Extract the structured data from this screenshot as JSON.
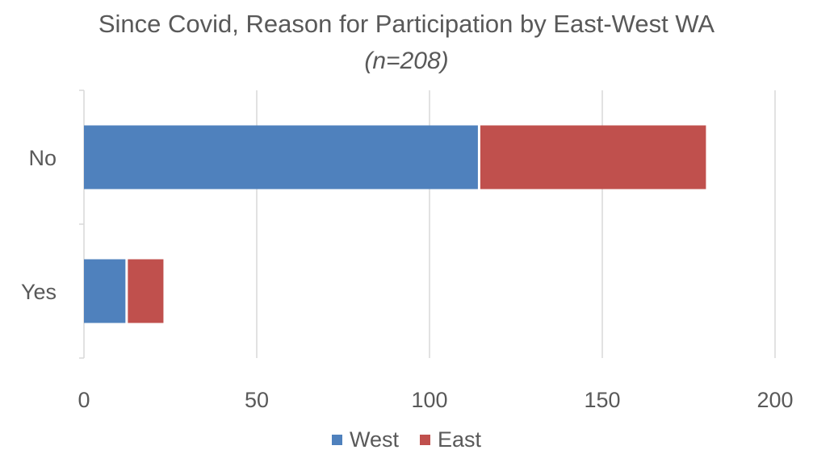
{
  "chart_data": {
    "type": "bar",
    "orientation": "horizontal",
    "stacked": true,
    "title": "Since Covid, Reason for Participation by East-West WA",
    "subtitle": "(n=208)",
    "categories": [
      "No",
      "Yes"
    ],
    "series": [
      {
        "name": "West",
        "color": "#4f81bd",
        "values": [
          114,
          12
        ]
      },
      {
        "name": "East",
        "color": "#c0504d",
        "values": [
          66,
          11
        ]
      }
    ],
    "xlim": [
      0,
      200
    ],
    "x_ticks": [
      "0",
      "50",
      "100",
      "150",
      "200"
    ],
    "grid": "vertical",
    "legend_position": "bottom"
  }
}
